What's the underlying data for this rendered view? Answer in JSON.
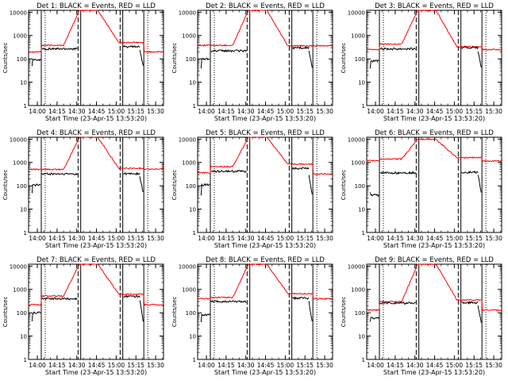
{
  "chart_data": {
    "type": "line",
    "x_tick_labels": [
      "14:00",
      "14:15",
      "14:30",
      "14:45",
      "15:00",
      "15:15",
      "15:30"
    ],
    "x_tick_minutes": [
      0,
      15,
      30,
      45,
      60,
      75,
      90
    ],
    "x_range_minutes": [
      -6.67,
      96
    ],
    "y_tick_labels": [
      "1",
      "10",
      "100",
      "1000",
      "10000"
    ],
    "ylim": [
      1,
      12000
    ],
    "y_scale": "log",
    "ylabel": "Counts/sec",
    "xlabel": "Start Time (23-Apr-15 13:53:20)",
    "colors": {
      "events": "#000000",
      "lld": "#ff0000"
    },
    "vertical_markers": [
      {
        "minute": 3,
        "style": "solid"
      },
      {
        "minute": 6,
        "style": "dotted"
      },
      {
        "minute": 31,
        "style": "dashed"
      },
      {
        "minute": 33,
        "style": "solid"
      },
      {
        "minute": 63,
        "style": "dashed"
      },
      {
        "minute": 65,
        "style": "solid"
      },
      {
        "minute": 81,
        "style": "solid"
      },
      {
        "minute": 84,
        "style": "dotted"
      }
    ],
    "panels": [
      {
        "title": "Det 1: BLACK = Events, RED = LLD",
        "events": {
          "pre": 90,
          "mid": 270,
          "post": 330,
          "post2": 230,
          "low": 50
        },
        "lld": {
          "pre": 200,
          "flat": 380,
          "peak": 12000,
          "post": 500,
          "after": 200
        }
      },
      {
        "title": "Det 2: BLACK = Events, RED = LLD",
        "events": {
          "pre": 100,
          "mid": 220,
          "post": 300,
          "post2": 230,
          "low": 40
        },
        "lld": {
          "pre": 380,
          "flat": 380,
          "peak": 12000,
          "post": 360,
          "after": 360
        }
      },
      {
        "title": "Det 3: BLACK = Events, RED = LLD",
        "events": {
          "pre": 80,
          "mid": 270,
          "post": 300,
          "post2": 220,
          "low": 40
        },
        "lld": {
          "pre": 250,
          "flat": 430,
          "peak": 12000,
          "post": 330,
          "after": 250
        }
      },
      {
        "title": "Det 4: BLACK = Events, RED = LLD",
        "events": {
          "pre": 110,
          "mid": 320,
          "post": 330,
          "post2": 240,
          "low": 50
        },
        "lld": {
          "pre": 500,
          "flat": 500,
          "peak": 12000,
          "post": 560,
          "after": 520
        }
      },
      {
        "title": "Det 5: BLACK = Events, RED = LLD",
        "events": {
          "pre": 110,
          "mid": 420,
          "post": 560,
          "post2": 270,
          "low": 40
        },
        "lld": {
          "pre": 360,
          "flat": 660,
          "peak": 12000,
          "post": 850,
          "after": 320
        }
      },
      {
        "title": "Det 6: BLACK = Events, RED = LLD",
        "events": {
          "pre": 40,
          "mid": 360,
          "post": 380,
          "post2": 300,
          "low": 50
        },
        "lld": {
          "pre": 1200,
          "flat": 1400,
          "peak": 9800,
          "post": 1600,
          "after": 1150
        }
      },
      {
        "title": "Det 7: BLACK = Events, RED = LLD",
        "events": {
          "pre": 100,
          "mid": 400,
          "post": 500,
          "post2": 350,
          "low": 40
        },
        "lld": {
          "pre": 220,
          "flat": 520,
          "peak": 12000,
          "post": 620,
          "after": 220
        }
      },
      {
        "title": "Det 8: BLACK = Events, RED = LLD",
        "events": {
          "pre": 80,
          "mid": 300,
          "post": 420,
          "post2": 300,
          "low": 40
        },
        "lld": {
          "pre": 400,
          "flat": 450,
          "peak": 12000,
          "post": 650,
          "after": 400
        }
      },
      {
        "title": "Det 9: BLACK = Events, RED = LLD",
        "events": {
          "pre": 60,
          "mid": 260,
          "post": 270,
          "post2": 200,
          "low": 40
        },
        "lld": {
          "pre": 130,
          "flat": 300,
          "peak": 12000,
          "post": 350,
          "after": 130
        }
      }
    ]
  }
}
